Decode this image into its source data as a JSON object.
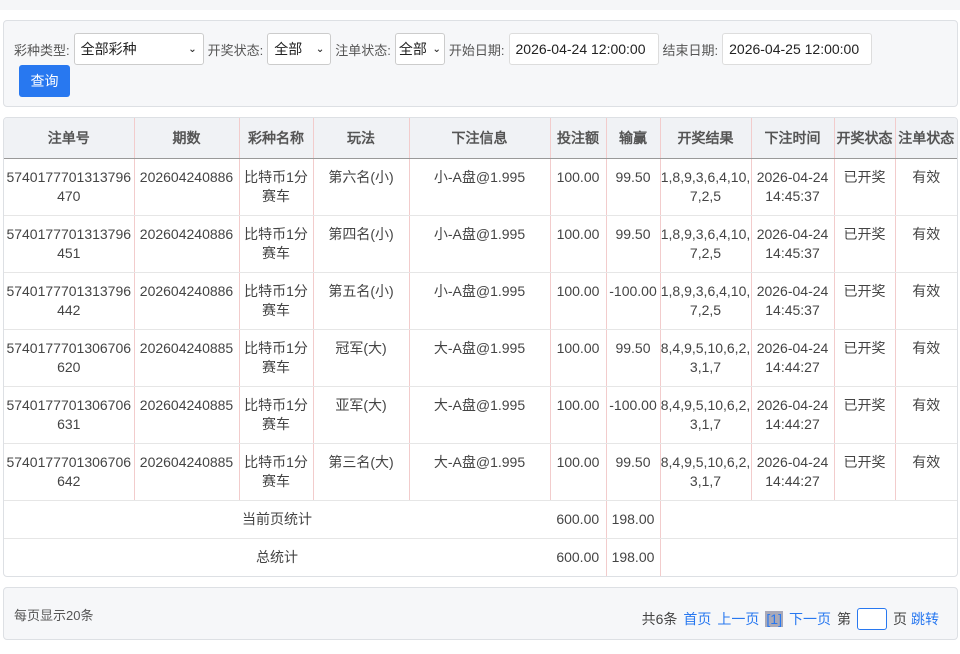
{
  "filter": {
    "lottery_type_label": "彩种类型:",
    "lottery_type_value": "全部彩种",
    "draw_status_label": "开奖状态:",
    "draw_status_value": "全部",
    "order_status_label": "注单状态:",
    "order_status_value": "全部",
    "start_label": "开始日期:",
    "start_value": "2026-04-24 12:00:00",
    "end_label": "结束日期:",
    "end_value": "2026-04-25 12:00:00",
    "query_label": "查询"
  },
  "table": {
    "headers": [
      "注单号",
      "期数",
      "彩种名称",
      "玩法",
      "下注信息",
      "投注额",
      "输赢",
      "开奖结果",
      "下注时间",
      "开奖状态",
      "注单状态"
    ],
    "rows": [
      [
        "5740177701313796470",
        "202604240886",
        "比特币1分赛车",
        "第六名(小)",
        "小-A盘@1.995",
        "100.00",
        "99.50",
        "1,8,9,3,6,4,10,7,2,5",
        "2026-04-24 14:45:37",
        "已开奖",
        "有效"
      ],
      [
        "5740177701313796451",
        "202604240886",
        "比特币1分赛车",
        "第四名(小)",
        "小-A盘@1.995",
        "100.00",
        "99.50",
        "1,8,9,3,6,4,10,7,2,5",
        "2026-04-24 14:45:37",
        "已开奖",
        "有效"
      ],
      [
        "5740177701313796442",
        "202604240886",
        "比特币1分赛车",
        "第五名(小)",
        "小-A盘@1.995",
        "100.00",
        "-100.00",
        "1,8,9,3,6,4,10,7,2,5",
        "2026-04-24 14:45:37",
        "已开奖",
        "有效"
      ],
      [
        "5740177701306706620",
        "202604240885",
        "比特币1分赛车",
        "冠军(大)",
        "大-A盘@1.995",
        "100.00",
        "99.50",
        "8,4,9,5,10,6,2,3,1,7",
        "2026-04-24 14:44:27",
        "已开奖",
        "有效"
      ],
      [
        "5740177701306706631",
        "202604240885",
        "比特币1分赛车",
        "亚军(大)",
        "大-A盘@1.995",
        "100.00",
        "-100.00",
        "8,4,9,5,10,6,2,3,1,7",
        "2026-04-24 14:44:27",
        "已开奖",
        "有效"
      ],
      [
        "5740177701306706642",
        "202604240885",
        "比特币1分赛车",
        "第三名(大)",
        "大-A盘@1.995",
        "100.00",
        "99.50",
        "8,4,9,5,10,6,2,3,1,7",
        "2026-04-24 14:44:27",
        "已开奖",
        "有效"
      ]
    ],
    "page_summary": {
      "label": "当前页统计",
      "bet": "600.00",
      "win": "198.00"
    },
    "total_summary": {
      "label": "总统计",
      "bet": "600.00",
      "win": "198.00"
    }
  },
  "pager": {
    "per_page": "每页显示20条",
    "total": "共6条",
    "first": "首页",
    "prev": "上一页",
    "current": "[1]",
    "next": "下一页",
    "page_prefix": "第",
    "page_input": "",
    "page_suffix": "页",
    "jump": "跳转"
  }
}
